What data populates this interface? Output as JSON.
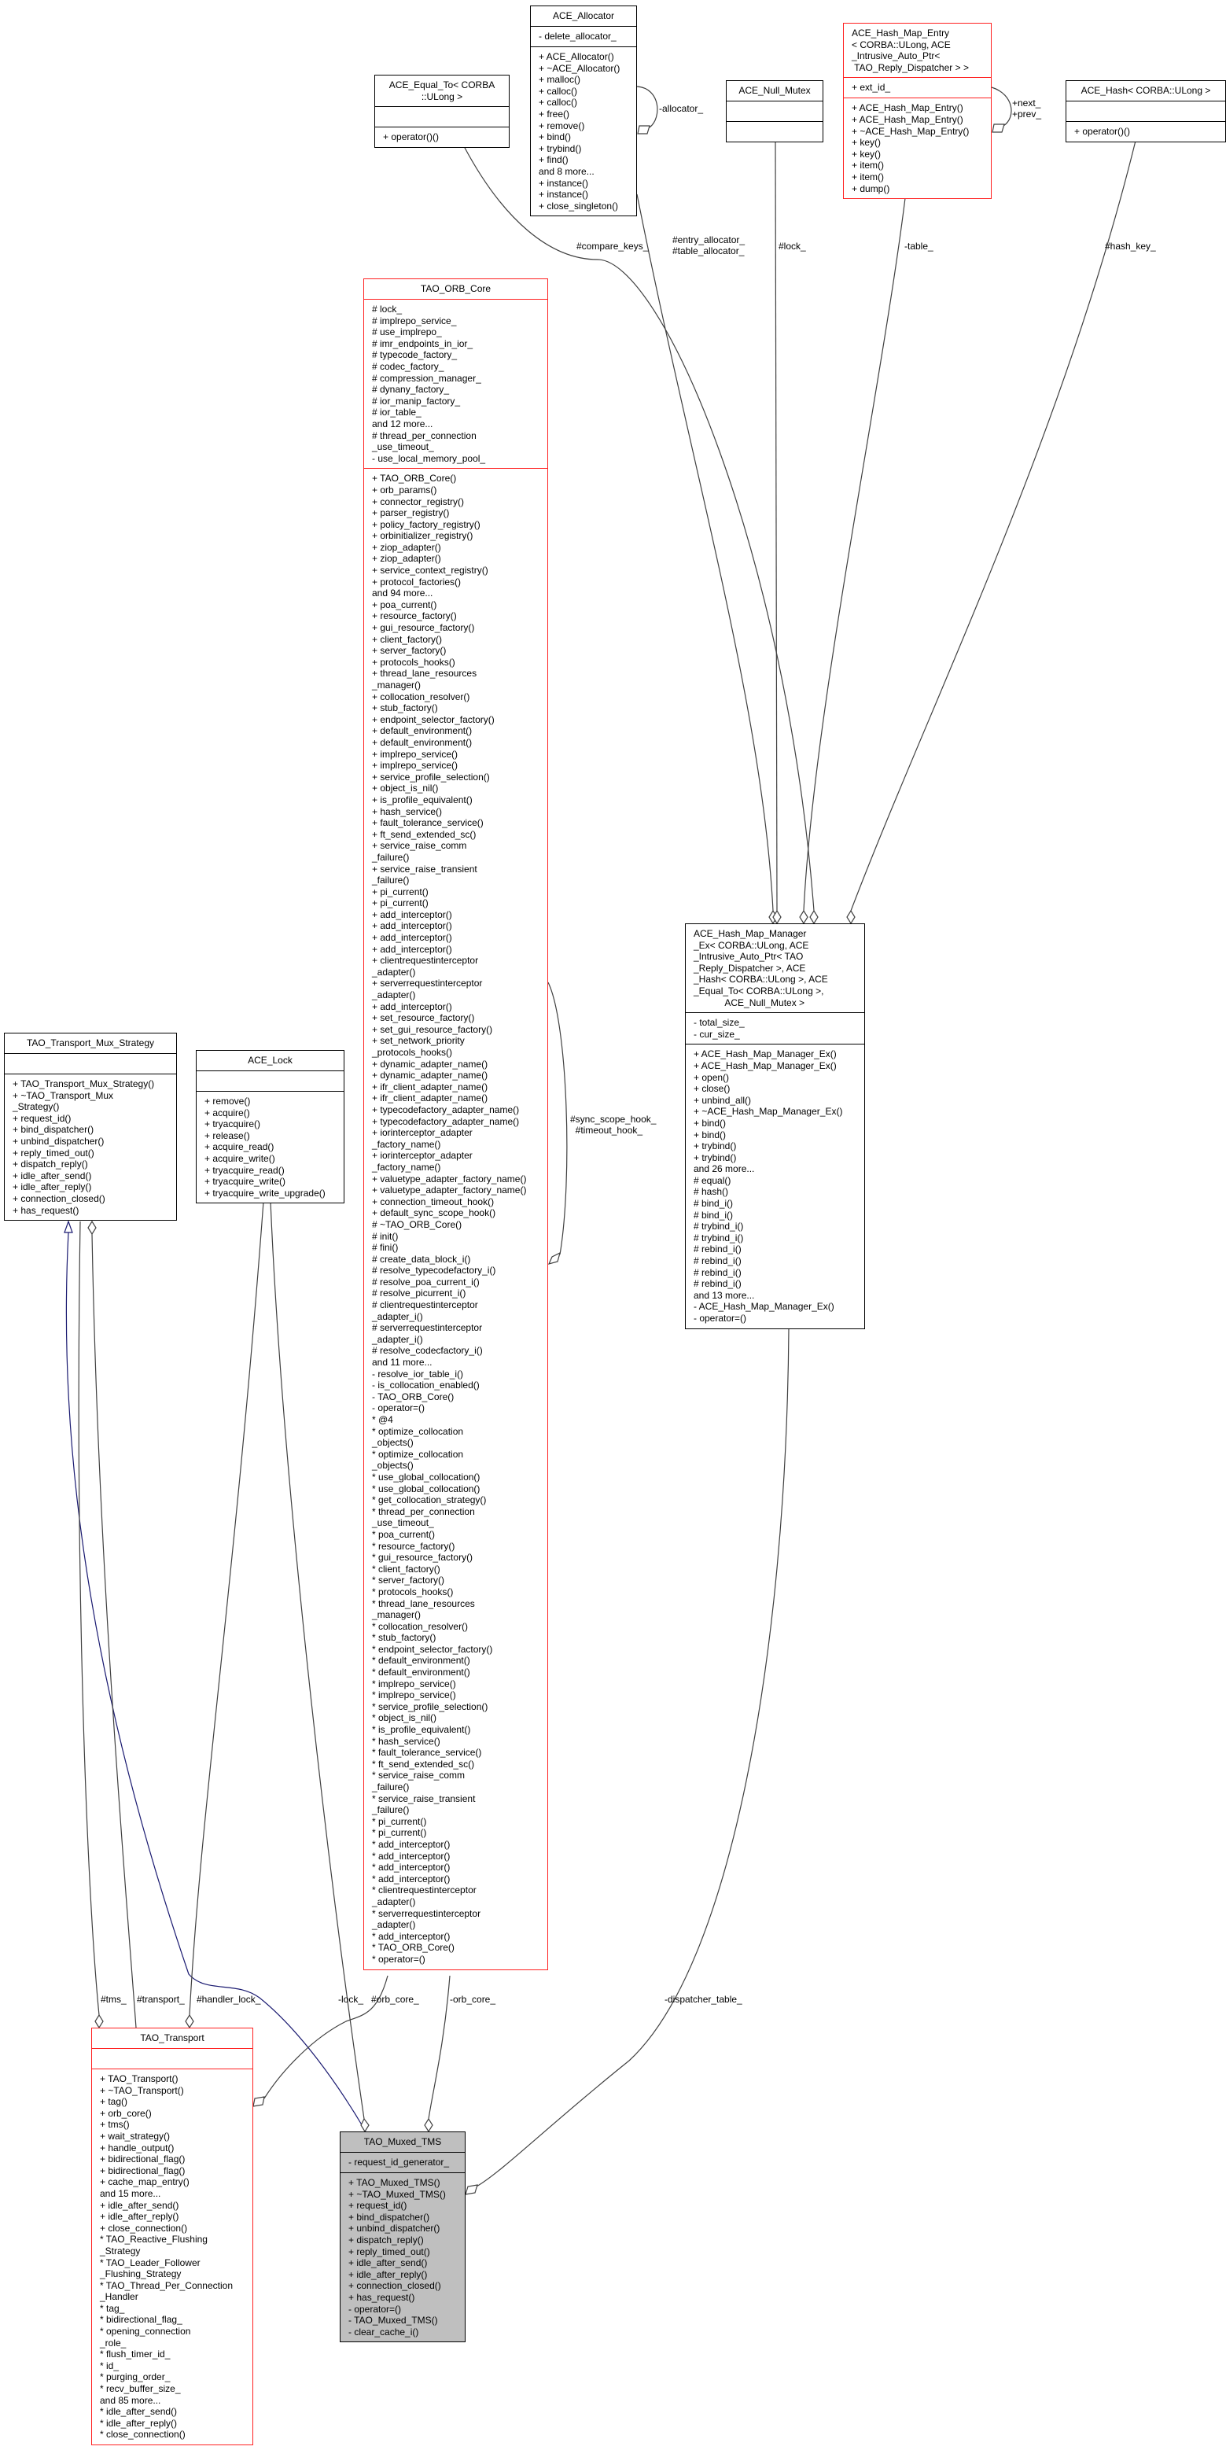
{
  "colors": {
    "edge": "#404040",
    "inheritance": "#191970",
    "undocumented_border": "#ff2020",
    "focus_fill": "#bfbfbf"
  },
  "boxes": {
    "ace_allocator": {
      "title": [
        "ACE_Allocator"
      ],
      "attributes": [
        "- delete_allocator_"
      ],
      "methods": [
        "+ ACE_Allocator()",
        "+ ~ACE_Allocator()",
        "+ malloc()",
        "+ calloc()",
        "+ calloc()",
        "+ free()",
        "+ remove()",
        "+ bind()",
        "+ trybind()",
        "+ find()",
        "and 8 more...",
        "+ instance()",
        "+ instance()",
        "+ close_singleton()"
      ]
    },
    "ace_equal_to": {
      "title": [
        "ACE_Equal_To< CORBA",
        "::ULong >"
      ],
      "attributes": [],
      "methods": [
        "+ operator()()"
      ]
    },
    "ace_null_mutex": {
      "title": [
        "ACE_Null_Mutex"
      ],
      "attributes": [],
      "methods": []
    },
    "ace_hash_map_entry": {
      "title": [
        "ACE_Hash_Map_Entry",
        "< CORBA::ULong, ACE",
        "_Intrusive_Auto_Ptr<",
        " TAO_Reply_Dispatcher > >"
      ],
      "attributes": [
        "+ ext_id_"
      ],
      "methods": [
        "+ ACE_Hash_Map_Entry()",
        "+ ACE_Hash_Map_Entry()",
        "+ ~ACE_Hash_Map_Entry()",
        "+ key()",
        "+ key()",
        "+ item()",
        "+ item()",
        "+ dump()"
      ]
    },
    "ace_hash": {
      "title": [
        "ACE_Hash< CORBA::ULong >"
      ],
      "attributes": [],
      "methods": [
        "+ operator()()"
      ]
    },
    "tao_orb_core": {
      "title": [
        "TAO_ORB_Core"
      ],
      "attributes": [
        "# lock_",
        "# implrepo_service_",
        "# use_implrepo_",
        "# imr_endpoints_in_ior_",
        "# typecode_factory_",
        "# codec_factory_",
        "# compression_manager_",
        "# dynany_factory_",
        "# ior_manip_factory_",
        "# ior_table_",
        "and 12 more...",
        "# thread_per_connection",
        "_use_timeout_",
        "- use_local_memory_pool_"
      ],
      "methods": [
        "+ TAO_ORB_Core()",
        "+ orb_params()",
        "+ connector_registry()",
        "+ parser_registry()",
        "+ policy_factory_registry()",
        "+ orbinitializer_registry()",
        "+ ziop_adapter()",
        "+ ziop_adapter()",
        "+ service_context_registry()",
        "+ protocol_factories()",
        "and 94 more...",
        "+ poa_current()",
        "+ resource_factory()",
        "+ gui_resource_factory()",
        "+ client_factory()",
        "+ server_factory()",
        "+ protocols_hooks()",
        "+ thread_lane_resources",
        "_manager()",
        "+ collocation_resolver()",
        "+ stub_factory()",
        "+ endpoint_selector_factory()",
        "+ default_environment()",
        "+ default_environment()",
        "+ implrepo_service()",
        "+ implrepo_service()",
        "+ service_profile_selection()",
        "+ object_is_nil()",
        "+ is_profile_equivalent()",
        "+ hash_service()",
        "+ fault_tolerance_service()",
        "+ ft_send_extended_sc()",
        "+ service_raise_comm",
        "_failure()",
        "+ service_raise_transient",
        "_failure()",
        "+ pi_current()",
        "+ pi_current()",
        "+ add_interceptor()",
        "+ add_interceptor()",
        "+ add_interceptor()",
        "+ add_interceptor()",
        "+ clientrequestinterceptor",
        "_adapter()",
        "+ serverrequestinterceptor",
        "_adapter()",
        "+ add_interceptor()",
        "+ set_resource_factory()",
        "+ set_gui_resource_factory()",
        "+ set_network_priority",
        "_protocols_hooks()",
        "+ dynamic_adapter_name()",
        "+ dynamic_adapter_name()",
        "+ ifr_client_adapter_name()",
        "+ ifr_client_adapter_name()",
        "+ typecodefactory_adapter_name()",
        "+ typecodefactory_adapter_name()",
        "+ iorinterceptor_adapter",
        "_factory_name()",
        "+ iorinterceptor_adapter",
        "_factory_name()",
        "+ valuetype_adapter_factory_name()",
        "+ valuetype_adapter_factory_name()",
        "+ connection_timeout_hook()",
        "+ default_sync_scope_hook()",
        "# ~TAO_ORB_Core()",
        "# init()",
        "# fini()",
        "# create_data_block_i()",
        "# resolve_typecodefactory_i()",
        "# resolve_poa_current_i()",
        "# resolve_picurrent_i()",
        "# clientrequestinterceptor",
        "_adapter_i()",
        "# serverrequestinterceptor",
        "_adapter_i()",
        "# resolve_codecfactory_i()",
        "and 11 more...",
        "- resolve_ior_table_i()",
        "- is_collocation_enabled()",
        "- TAO_ORB_Core()",
        "- operator=()",
        "* @4",
        "* optimize_collocation",
        "_objects()",
        "* optimize_collocation",
        "_objects()",
        "* use_global_collocation()",
        "* use_global_collocation()",
        "* get_collocation_strategy()",
        "* thread_per_connection",
        "_use_timeout_",
        "* poa_current()",
        "* resource_factory()",
        "* gui_resource_factory()",
        "* client_factory()",
        "* server_factory()",
        "* protocols_hooks()",
        "* thread_lane_resources",
        "_manager()",
        "* collocation_resolver()",
        "* stub_factory()",
        "* endpoint_selector_factory()",
        "* default_environment()",
        "* default_environment()",
        "* implrepo_service()",
        "* implrepo_service()",
        "* service_profile_selection()",
        "* object_is_nil()",
        "* is_profile_equivalent()",
        "* hash_service()",
        "* fault_tolerance_service()",
        "* ft_send_extended_sc()",
        "* service_raise_comm",
        "_failure()",
        "* service_raise_transient",
        "_failure()",
        "* pi_current()",
        "* pi_current()",
        "* add_interceptor()",
        "* add_interceptor()",
        "* add_interceptor()",
        "* add_interceptor()",
        "* clientrequestinterceptor",
        "_adapter()",
        "* serverrequestinterceptor",
        "_adapter()",
        "* add_interceptor()",
        "* TAO_ORB_Core()",
        "* operator=()"
      ]
    },
    "tao_transport_mux_strategy": {
      "title": [
        "TAO_Transport_Mux_Strategy"
      ],
      "attributes": [],
      "methods": [
        "+ TAO_Transport_Mux_Strategy()",
        "+ ~TAO_Transport_Mux",
        "_Strategy()",
        "+ request_id()",
        "+ bind_dispatcher()",
        "+ unbind_dispatcher()",
        "+ reply_timed_out()",
        "+ dispatch_reply()",
        "+ idle_after_send()",
        "+ idle_after_reply()",
        "+ connection_closed()",
        "+ has_request()"
      ]
    },
    "ace_lock": {
      "title": [
        "ACE_Lock"
      ],
      "attributes": [],
      "methods": [
        "+ remove()",
        "+ acquire()",
        "+ tryacquire()",
        "+ release()",
        "+ acquire_read()",
        "+ acquire_write()",
        "+ tryacquire_read()",
        "+ tryacquire_write()",
        "+ tryacquire_write_upgrade()"
      ]
    },
    "ace_hash_map_manager_ex": {
      "title": [
        "ACE_Hash_Map_Manager",
        "_Ex< CORBA::ULong, ACE",
        "_Intrusive_Auto_Ptr< TAO",
        "_Reply_Dispatcher >, ACE",
        "_Hash< CORBA::ULong >, ACE",
        "_Equal_To< CORBA::ULong >,",
        "            ACE_Null_Mutex >"
      ],
      "attributes": [
        "- total_size_",
        "- cur_size_"
      ],
      "methods": [
        "+ ACE_Hash_Map_Manager_Ex()",
        "+ ACE_Hash_Map_Manager_Ex()",
        "+ open()",
        "+ close()",
        "+ unbind_all()",
        "+ ~ACE_Hash_Map_Manager_Ex()",
        "+ bind()",
        "+ bind()",
        "+ trybind()",
        "+ trybind()",
        "and 26 more...",
        "# equal()",
        "# hash()",
        "# bind_i()",
        "# bind_i()",
        "# trybind_i()",
        "# trybind_i()",
        "# rebind_i()",
        "# rebind_i()",
        "# rebind_i()",
        "# rebind_i()",
        "and 13 more...",
        "- ACE_Hash_Map_Manager_Ex()",
        "- operator=()"
      ]
    },
    "tao_transport": {
      "title": [
        "TAO_Transport"
      ],
      "attributes": [],
      "methods": [
        "+ TAO_Transport()",
        "+ ~TAO_Transport()",
        "+ tag()",
        "+ orb_core()",
        "+ tms()",
        "+ wait_strategy()",
        "+ handle_output()",
        "+ bidirectional_flag()",
        "+ bidirectional_flag()",
        "+ cache_map_entry()",
        "and 15 more...",
        "+ idle_after_send()",
        "+ idle_after_reply()",
        "+ close_connection()",
        "* TAO_Reactive_Flushing",
        "_Strategy",
        "* TAO_Leader_Follower",
        "_Flushing_Strategy",
        "* TAO_Thread_Per_Connection",
        "_Handler",
        "* tag_",
        "* bidirectional_flag_",
        "* opening_connection",
        "_role_",
        "* flush_timer_id_",
        "* id_",
        "* purging_order_",
        "* recv_buffer_size_",
        "and 85 more...",
        "* idle_after_send()",
        "* idle_after_reply()",
        "* close_connection()"
      ]
    },
    "tao_muxed_tms": {
      "title": [
        "TAO_Muxed_TMS"
      ],
      "attributes": [
        "- request_id_generator_"
      ],
      "methods": [
        "+ TAO_Muxed_TMS()",
        "+ ~TAO_Muxed_TMS()",
        "+ request_id()",
        "+ bind_dispatcher()",
        "+ unbind_dispatcher()",
        "+ dispatch_reply()",
        "+ reply_timed_out()",
        "+ idle_after_send()",
        "+ idle_after_reply()",
        "+ connection_closed()",
        "+ has_request()",
        "- operator=()",
        "- TAO_Muxed_TMS()",
        "- clear_cache_i()"
      ]
    }
  },
  "edge_labels": {
    "allocator": "-allocator_",
    "next_prev": "+next_\n+prev_",
    "compare_keys": "#compare_keys_",
    "entry_table_allocator": "#entry_allocator_\n#table_allocator_",
    "lock_null": "#lock_",
    "table": "-table_",
    "hash_key": "#hash_key_",
    "sync_timeout": "#sync_scope_hook_\n  #timeout_hook_",
    "tms": "#tms_",
    "transport": "#transport_",
    "handler_lock": "#handler_lock_",
    "lock": "-lock_",
    "orb_core_prot": "#orb_core_",
    "orb_core_priv": "-orb_core_",
    "dispatcher_table": "-dispatcher_table_"
  }
}
